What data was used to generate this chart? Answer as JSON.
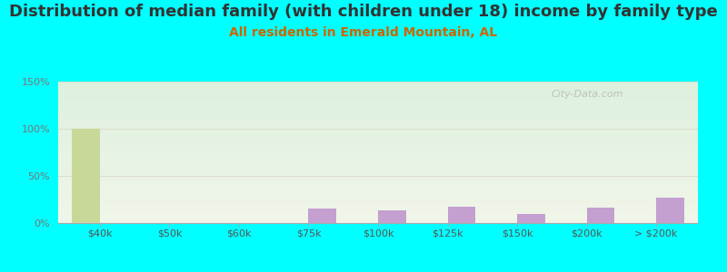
{
  "title": "Distribution of median family (with children under 18) income by family type",
  "subtitle": "All residents in Emerald Mountain, AL",
  "background_color": "#00FFFF",
  "plot_bg_top_color": "#ddf0dd",
  "plot_bg_bottom_color": "#f0f5e8",
  "categories": [
    "$40k",
    "$50k",
    "$60k",
    "$75k",
    "$100k",
    "$125k",
    "$150k",
    "$200k",
    "> $200k"
  ],
  "married_couple": [
    0,
    0,
    0,
    15,
    13,
    17,
    10,
    16,
    27
  ],
  "male_no_wife": [
    100,
    0,
    0,
    0,
    0,
    0,
    0,
    0,
    0
  ],
  "married_couple_color": "#c4a0d0",
  "male_no_wife_color": "#c8d898",
  "ylim": [
    0,
    150
  ],
  "yticks": [
    0,
    50,
    100,
    150
  ],
  "ytick_labels": [
    "0%",
    "50%",
    "100%",
    "150%"
  ],
  "bar_width": 0.4,
  "title_fontsize": 13,
  "subtitle_fontsize": 10,
  "tick_fontsize": 8,
  "watermark": "City-Data.com",
  "grid_color": "#ddddcc",
  "axis_color": "#aaaaaa",
  "title_color": "#333333",
  "subtitle_color": "#cc6600"
}
